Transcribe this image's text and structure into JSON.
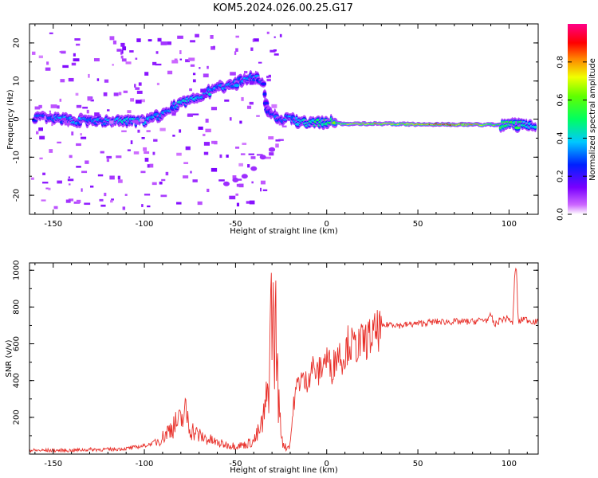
{
  "title": "KOM5.2024.026.00.25.G17",
  "chart_data": [
    {
      "type": "heatmap",
      "xlabel": "Height of straight line (km)",
      "ylabel": "Frequency (Hz)",
      "xlim": [
        -163,
        116
      ],
      "ylim": [
        -25,
        25
      ],
      "x_ticks": [
        -150,
        -100,
        -50,
        0,
        50,
        100
      ],
      "y_ticks": [
        -20,
        -10,
        0,
        10,
        20
      ],
      "colorbar": {
        "label": "Normalized spectral amplitude",
        "range": [
          0,
          1
        ],
        "ticks": [
          0.0,
          0.2,
          0.4,
          0.6,
          0.8
        ],
        "colormap": "rainbow (purple-blue-cyan-green-yellow-red-magenta)"
      },
      "ridge": [
        {
          "x": -160,
          "y": 0.5,
          "amp": 0.3
        },
        {
          "x": -150,
          "y": 0.0,
          "amp": 0.35
        },
        {
          "x": -140,
          "y": -0.3,
          "amp": 0.35
        },
        {
          "x": -130,
          "y": -0.5,
          "amp": 0.35
        },
        {
          "x": -120,
          "y": -0.8,
          "amp": 0.35
        },
        {
          "x": -110,
          "y": -0.6,
          "amp": 0.4
        },
        {
          "x": -100,
          "y": -0.6,
          "amp": 0.4
        },
        {
          "x": -90,
          "y": 1.0,
          "amp": 0.35
        },
        {
          "x": -85,
          "y": 3.0,
          "amp": 0.35
        },
        {
          "x": -80,
          "y": 4.0,
          "amp": 0.4
        },
        {
          "x": -75,
          "y": 5.0,
          "amp": 0.4
        },
        {
          "x": -70,
          "y": 6.0,
          "amp": 0.4
        },
        {
          "x": -65,
          "y": 7.0,
          "amp": 0.4
        },
        {
          "x": -60,
          "y": 8.0,
          "amp": 0.35
        },
        {
          "x": -55,
          "y": 9.0,
          "amp": 0.35
        },
        {
          "x": -50,
          "y": 9.5,
          "amp": 0.35
        },
        {
          "x": -45,
          "y": 10.5,
          "amp": 0.35
        },
        {
          "x": -40,
          "y": 11.0,
          "amp": 0.35
        },
        {
          "x": -35,
          "y": 10.0,
          "amp": 0.3
        },
        {
          "x": -33,
          "y": 3.0,
          "amp": 0.25
        },
        {
          "x": -30,
          "y": 1.0,
          "amp": 0.3
        },
        {
          "x": -25,
          "y": 0.0,
          "amp": 0.3
        },
        {
          "x": -20,
          "y": 0.5,
          "amp": 0.35
        },
        {
          "x": -15,
          "y": -1.0,
          "amp": 0.4
        },
        {
          "x": -10,
          "y": -1.0,
          "amp": 0.45
        },
        {
          "x": -5,
          "y": -1.0,
          "amp": 0.5
        },
        {
          "x": 0,
          "y": -0.5,
          "amp": 0.5
        },
        {
          "x": 10,
          "y": -1.3,
          "amp": 0.7
        },
        {
          "x": 20,
          "y": -1.2,
          "amp": 0.75
        },
        {
          "x": 30,
          "y": -1.2,
          "amp": 0.75
        },
        {
          "x": 40,
          "y": -1.3,
          "amp": 0.72
        },
        {
          "x": 50,
          "y": -1.4,
          "amp": 0.82
        },
        {
          "x": 60,
          "y": -1.4,
          "amp": 0.85
        },
        {
          "x": 70,
          "y": -1.4,
          "amp": 0.85
        },
        {
          "x": 80,
          "y": -1.4,
          "amp": 0.8
        },
        {
          "x": 90,
          "y": -1.5,
          "amp": 0.65
        },
        {
          "x": 100,
          "y": -1.5,
          "amp": 0.55
        },
        {
          "x": 110,
          "y": -1.5,
          "amp": 0.45
        }
      ]
    },
    {
      "type": "line",
      "xlabel": "Height of straight line (km)",
      "ylabel": "SNR (v/v)",
      "xlim": [
        -163,
        116
      ],
      "ylim": [
        0,
        1040
      ],
      "x_ticks": [
        -150,
        -100,
        -50,
        0,
        50,
        100
      ],
      "y_ticks": [
        200,
        400,
        600,
        800,
        1000
      ],
      "series": [
        {
          "color": "#e8302a",
          "x": [
            -163,
            -150,
            -140,
            -130,
            -120,
            -110,
            -100,
            -95,
            -90,
            -85,
            -80,
            -77,
            -75,
            -70,
            -65,
            -60,
            -55,
            -50,
            -45,
            -40,
            -36,
            -34,
            -32,
            -31,
            -30,
            -29,
            -28,
            -26,
            -24,
            -22,
            -20,
            -18,
            -16,
            -14,
            -12,
            -10,
            -8,
            -5,
            -2,
            0,
            3,
            6,
            9,
            12,
            15,
            20,
            25,
            30,
            35,
            40,
            50,
            60,
            70,
            80,
            85,
            89,
            90,
            92,
            95,
            100,
            102,
            103,
            104,
            105,
            106,
            108,
            110,
            116
          ],
          "values": [
            20,
            20,
            20,
            25,
            25,
            30,
            45,
            60,
            90,
            150,
            180,
            230,
            140,
            100,
            80,
            60,
            50,
            45,
            50,
            70,
            140,
            220,
            350,
            640,
            850,
            610,
            700,
            210,
            60,
            30,
            60,
            280,
            380,
            420,
            380,
            420,
            480,
            430,
            500,
            520,
            460,
            560,
            520,
            610,
            580,
            610,
            640,
            690,
            710,
            700,
            710,
            720,
            720,
            720,
            730,
            730,
            760,
            700,
            730,
            740,
            700,
            950,
            1030,
            720,
            720,
            740,
            730,
            715
          ]
        }
      ]
    }
  ]
}
